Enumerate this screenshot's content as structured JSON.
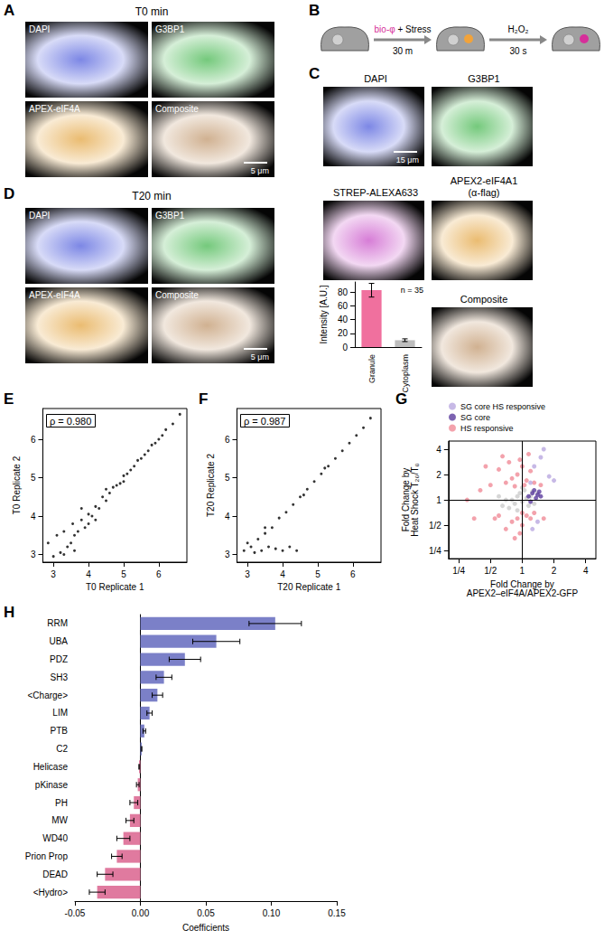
{
  "figure": {
    "panel_labels": [
      "A",
      "B",
      "C",
      "D",
      "E",
      "F",
      "G",
      "H"
    ],
    "image_panels": [
      {
        "title": "T0 min",
        "tiles": [
          {
            "label": "DAPI",
            "color": "#3b4bd8"
          },
          {
            "label": "G3BP1",
            "color": "#2fae3a"
          },
          {
            "label": "APEX-eIF4A",
            "color": "#e09a2a"
          },
          {
            "label": "Composite",
            "color": "#b98a5a"
          }
        ],
        "scale_bar": "5 μm"
      },
      {
        "tiles": [
          {
            "label": "DAPI",
            "color": "#3b4bd8"
          },
          {
            "label": "G3BP1",
            "color": "#2fae3a"
          },
          {
            "label": "STREP-ALEXA633",
            "color": "#c23cc2"
          },
          {
            "label": "APEX2-eIF4A1\n(α-flag)",
            "color": "#e09a2a"
          },
          {
            "label": "Composite",
            "color": "#b98a5a"
          }
        ],
        "scale_bar": "15 μm"
      },
      {
        "title": "T20 min",
        "tiles": [
          {
            "label": "DAPI",
            "color": "#3b4bd8"
          },
          {
            "label": "G3BP1",
            "color": "#2fae3a"
          },
          {
            "label": "APEX-eIF4A",
            "color": "#e09a2a"
          },
          {
            "label": "Composite",
            "color": "#b98a5a"
          }
        ],
        "scale_bar": "5 μm"
      }
    ],
    "schematic": {
      "steps": [
        {
          "above": [
            {
              "text": "bio-φ",
              "color": "#d62f9a"
            },
            {
              "text": " + Stress",
              "color": "#000000"
            }
          ],
          "below": "30 m"
        },
        {
          "above": [
            {
              "text": "H₂O₂",
              "color": "#000000"
            }
          ],
          "below": "30 s"
        }
      ]
    }
  },
  "chart_data": [
    {
      "type": "bar",
      "categories": [
        "Granule",
        "Cytoplasm"
      ],
      "values": [
        83,
        10
      ],
      "error": [
        10,
        2
      ],
      "colors": [
        "#f0709e",
        "#bdbdbd"
      ],
      "ylabel": "Intensity [A.U.]",
      "ylim": [
        0,
        95
      ],
      "yticks": [
        0,
        20,
        40,
        60,
        80
      ],
      "annotations": [
        "n = 35"
      ],
      "grid": false
    },
    {
      "type": "scatter",
      "xlabel": "T0 Replicate 1",
      "ylabel": "T0 Replicate 2",
      "annotations": [
        "ρ = 0.980"
      ],
      "x": [
        2.85,
        3.0,
        3.1,
        3.2,
        3.3,
        3.4,
        3.5,
        3.55,
        3.6,
        3.7,
        3.8,
        3.9,
        4.0,
        4.1,
        4.2,
        4.3,
        4.4,
        4.5,
        4.6,
        4.7,
        4.8,
        4.9,
        5.0,
        5.1,
        5.2,
        5.3,
        5.4,
        5.5,
        5.6,
        5.7,
        5.8,
        5.9,
        6.0,
        6.1,
        6.2,
        6.4,
        6.6,
        3.3,
        3.6,
        4.0,
        4.5,
        5.0,
        4.2,
        3.8
      ],
      "y": [
        3.3,
        2.95,
        3.5,
        3.05,
        3.6,
        3.2,
        3.3,
        3.8,
        3.5,
        3.6,
        3.9,
        3.7,
        4.05,
        4.0,
        4.25,
        4.2,
        4.5,
        4.4,
        4.6,
        4.75,
        4.8,
        4.85,
        5.05,
        5.1,
        5.2,
        5.3,
        5.45,
        5.5,
        5.6,
        5.7,
        5.85,
        5.9,
        6.0,
        6.1,
        6.25,
        6.4,
        6.65,
        3.0,
        3.1,
        3.8,
        4.7,
        4.9,
        3.9,
        4.2
      ],
      "color": "#000000",
      "xlim": [
        2.7,
        6.8
      ],
      "ylim": [
        2.8,
        6.8
      ],
      "xticks": [
        3,
        4,
        5,
        6
      ],
      "yticks": [
        3,
        4,
        5,
        6
      ],
      "grid": false
    },
    {
      "type": "scatter",
      "xlabel": "T20 Replicate 1",
      "ylabel": "T20 Replicate 2",
      "annotations": [
        "ρ = 0.987"
      ],
      "x": [
        2.9,
        3.1,
        3.3,
        3.5,
        3.7,
        3.9,
        4.1,
        4.3,
        4.5,
        4.7,
        4.9,
        5.1,
        5.3,
        5.5,
        5.7,
        5.9,
        6.1,
        6.3,
        6.5,
        3.2,
        3.4,
        3.6,
        3.8,
        4.0,
        4.2,
        4.4,
        3.0,
        3.5,
        4.6,
        5.2
      ],
      "y": [
        3.1,
        3.2,
        3.4,
        3.55,
        3.7,
        3.95,
        4.1,
        4.3,
        4.5,
        4.7,
        4.9,
        5.1,
        5.3,
        5.5,
        5.7,
        5.9,
        6.1,
        6.3,
        6.55,
        3.05,
        3.1,
        3.2,
        3.15,
        3.1,
        3.2,
        3.1,
        3.3,
        3.7,
        4.55,
        5.25
      ],
      "color": "#000000",
      "xlim": [
        2.7,
        6.8
      ],
      "ylim": [
        2.8,
        6.8
      ],
      "xticks": [
        3,
        4,
        5,
        6
      ],
      "yticks": [
        3,
        4,
        5,
        6
      ],
      "grid": false
    },
    {
      "type": "scatter",
      "log": true,
      "xlabel": "Fold Change by\nAPEX2–eIF4A/APEX2-GFP",
      "ylabel": "Fold Change by\nHeat Shock T₂₀/T₀",
      "xlim": [
        0.2,
        5
      ],
      "ylim": [
        0.2,
        5
      ],
      "xticks": [
        {
          "value": 0.25,
          "label": "1/4"
        },
        {
          "value": 0.5,
          "label": "1/2"
        },
        1,
        2,
        4
      ],
      "yticks": [
        {
          "value": 0.25,
          "label": "1/4"
        },
        {
          "value": 0.5,
          "label": "1/2"
        },
        1,
        2,
        4
      ],
      "reference_lines": [
        {
          "axis": "x",
          "value": 1
        },
        {
          "axis": "y",
          "value": 1
        }
      ],
      "legend": "top-left",
      "grid": false,
      "series": [
        {
          "color": "#cccccc",
          "x": [
            0.8,
            0.9,
            1.0,
            1.1,
            0.85,
            0.95,
            1.2,
            0.7,
            1.3,
            1.05,
            0.75,
            1.15,
            0.9,
            1.4,
            0.6,
            1.0,
            0.65,
            1.25
          ],
          "y": [
            1.0,
            1.1,
            0.95,
            1.05,
            0.9,
            1.2,
            1.1,
            1.0,
            0.9,
            1.3,
            0.8,
            0.85,
            0.75,
            1.2,
            1.1,
            1.4,
            0.85,
            1.25
          ]
        },
        {
          "name": "SG core HS responsive",
          "color": "#b9a7e0",
          "x": [
            1.3,
            1.5,
            1.8,
            1.2,
            1.6,
            1.4,
            1.25,
            2.0
          ],
          "y": [
            2.5,
            3.2,
            1.9,
            1.6,
            4.0,
            0.55,
            0.45,
            1.7
          ]
        },
        {
          "name": "SG core",
          "color": "#5b3c9e",
          "x": [
            1.15,
            1.25,
            1.35,
            1.4,
            1.5,
            1.3,
            1.2,
            1.45
          ],
          "y": [
            1.1,
            1.2,
            1.05,
            1.15,
            1.1,
            1.3,
            0.95,
            1.25
          ]
        },
        {
          "name": "HS responsive",
          "color": "#f08b97",
          "x": [
            0.9,
            1.0,
            0.8,
            1.1,
            0.7,
            1.2,
            0.95,
            0.6,
            1.05,
            0.85,
            1.3,
            0.5,
            0.75,
            0.9,
            1.0,
            0.8,
            1.1,
            0.7,
            1.2,
            0.95,
            0.6,
            0.85,
            1.0,
            0.55,
            1.3,
            0.4,
            0.35,
            0.45,
            1.5,
            1.6,
            0.3,
            0.65,
            1.15
          ],
          "y": [
            2.0,
            2.5,
            1.8,
            1.7,
            1.6,
            2.2,
            3.0,
            2.3,
            1.5,
            1.45,
            1.6,
            1.5,
            2.8,
            0.6,
            0.5,
            0.55,
            0.65,
            0.45,
            0.6,
            0.4,
            0.65,
            0.35,
            0.7,
            0.6,
            0.7,
            1.3,
            0.6,
            2.5,
            1.5,
            0.6,
            1.0,
            3.3,
            3.5
          ]
        }
      ]
    },
    {
      "type": "bar",
      "orientation": "horizontal",
      "categories": [
        "RRM",
        "UBA",
        "PDZ",
        "SH3",
        "<Charge>",
        "LIM",
        "PTB",
        "C2",
        "Helicase",
        "pKinase",
        "PH",
        "MW",
        "WD40",
        "Prion Prop",
        "DEAD",
        "<Hydro>"
      ],
      "values": [
        0.103,
        0.058,
        0.034,
        0.018,
        0.013,
        0.007,
        0.003,
        0.001,
        -0.001,
        -0.002,
        -0.005,
        -0.008,
        -0.013,
        -0.018,
        -0.027,
        -0.033
      ],
      "error": [
        0.02,
        0.018,
        0.012,
        0.006,
        0.004,
        0.002,
        0.001,
        0,
        0,
        0.001,
        0.003,
        0.003,
        0.005,
        0.004,
        0.006,
        0.006
      ],
      "colors": [
        "#7b80c8",
        "#7b80c8",
        "#7b80c8",
        "#7b80c8",
        "#7b80c8",
        "#7b80c8",
        "#7b80c8",
        "#7b80c8",
        "#e07a9f",
        "#e07a9f",
        "#e07a9f",
        "#e07a9f",
        "#e07a9f",
        "#e07a9f",
        "#e07a9f",
        "#e07a9f"
      ],
      "xlabel": "Coefficients",
      "xlim": [
        -0.05,
        0.15
      ],
      "xticks": [
        -0.05,
        {
          "value": 0,
          "label": "0.00"
        },
        0.05,
        {
          "value": 0.1,
          "label": "0.10"
        },
        0.15
      ],
      "grid": false
    }
  ]
}
